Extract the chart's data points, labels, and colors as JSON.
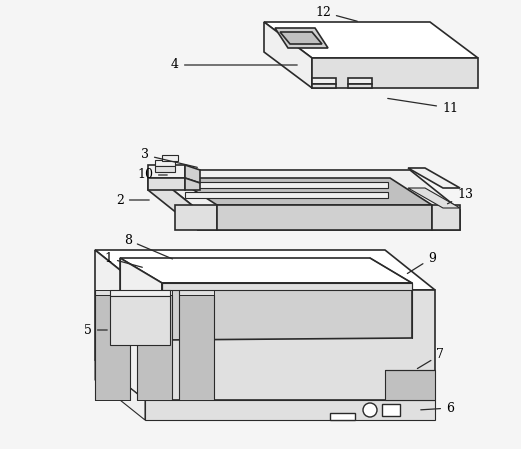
{
  "bg_color": "#f5f5f5",
  "line_color": "#2a2a2a",
  "label_color": "#000000",
  "fig_width": 5.21,
  "fig_height": 4.49,
  "dpi": 100,
  "face_white": "#ffffff",
  "face_light": "#f0f0f0",
  "face_mid": "#e0e0e0",
  "face_dark": "#d0d0d0",
  "face_darker": "#c0c0c0"
}
